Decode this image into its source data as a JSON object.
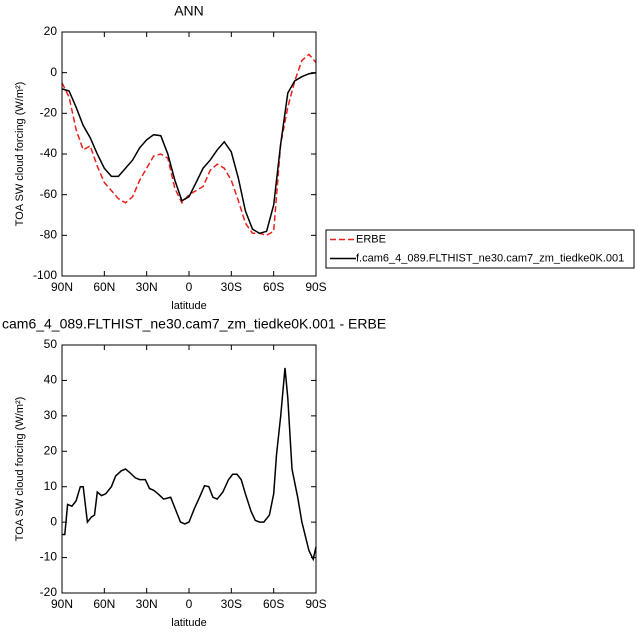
{
  "chart_data": [
    {
      "type": "line",
      "title": "ANN",
      "x_label": "latitude",
      "y_label": "TOA SW cloud forcing (W/m²)",
      "x": [
        90,
        85,
        80,
        75,
        70,
        65,
        60,
        55,
        50,
        45,
        40,
        35,
        30,
        25,
        20,
        15,
        10,
        5,
        0,
        -5,
        -10,
        -15,
        -20,
        -25,
        -30,
        -35,
        -40,
        -45,
        -50,
        -55,
        -60,
        -65,
        -70,
        -75,
        -80,
        -85,
        -90
      ],
      "series": [
        {
          "name": "ERBE",
          "color": "#e8201c",
          "dash": true,
          "values": [
            -5,
            -12,
            -28,
            -38,
            -36,
            -46,
            -54,
            -58,
            -62,
            -64,
            -61,
            -53,
            -47,
            -41,
            -40,
            -42,
            -57,
            -64,
            -60,
            -58,
            -56,
            -48,
            -45,
            -47,
            -53,
            -63,
            -74,
            -79,
            -79,
            -80,
            -78,
            -35,
            -17,
            -4,
            6,
            9,
            5
          ]
        },
        {
          "name": "f.cam6_4_089.FLTHIST_ne30.cam7_zm_tiedke0K.001",
          "color": "#000000",
          "dash": false,
          "values": [
            -8,
            -9,
            -17,
            -26,
            -32,
            -40,
            -47,
            -51,
            -51,
            -47,
            -43,
            -37,
            -33,
            -30.5,
            -31,
            -40,
            -53,
            -63,
            -61,
            -54,
            -47,
            -43,
            -38,
            -34,
            -39,
            -52,
            -68,
            -77,
            -79,
            -78,
            -65,
            -35,
            -10,
            -4,
            -2,
            -0.5,
            0
          ]
        }
      ],
      "xlim": [
        90,
        -90
      ],
      "xticks": [
        {
          "value": 90,
          "label": "90N"
        },
        {
          "value": 60,
          "label": "60N"
        },
        {
          "value": 30,
          "label": "30N"
        },
        0,
        {
          "value": -30,
          "label": "30S"
        },
        {
          "value": -60,
          "label": "60S"
        },
        {
          "value": -90,
          "label": "90S"
        }
      ],
      "ylim": [
        -100,
        20
      ],
      "yticks": [
        -100,
        -80,
        -60,
        -40,
        -20,
        0,
        20
      ],
      "legend": "right"
    },
    {
      "type": "line",
      "title": "cam6_4_089.FLTHIST_ne30.cam7_zm_tiedke0K.001 - ERBE",
      "x_label": "latitude",
      "y_label": "TOA SW cloud forcing (W/m²)",
      "x": [
        90,
        88,
        86,
        83,
        80,
        77,
        75,
        72,
        69,
        67,
        65,
        62,
        59,
        55,
        52,
        48,
        45,
        42,
        38,
        35,
        31,
        28,
        25,
        22,
        18,
        13,
        10,
        6,
        3,
        0,
        -4,
        -8,
        -11,
        -14,
        -17,
        -20,
        -24,
        -28,
        -31,
        -34,
        -37,
        -40,
        -44,
        -47,
        -50,
        -53,
        -57,
        -60,
        -62,
        -65,
        -68,
        -70,
        -73,
        -77,
        -80,
        -85,
        -88,
        -90
      ],
      "series": [
        {
          "color": "#000000",
          "dash": false,
          "values": [
            -3.5,
            -3.5,
            5,
            4.5,
            6,
            10,
            10,
            0,
            1.5,
            2,
            8.5,
            7.5,
            8,
            10,
            13,
            14.5,
            15,
            14,
            12.5,
            12,
            12,
            9.5,
            9,
            8,
            6.5,
            7,
            4,
            0,
            -0.5,
            0,
            4,
            7.5,
            10.3,
            10,
            7,
            6.5,
            8.5,
            12,
            13.5,
            13.5,
            12,
            8,
            3,
            0.5,
            0,
            0,
            2,
            8,
            19,
            30,
            43.5,
            35,
            15,
            7,
            0,
            -8,
            -10.5,
            -7
          ]
        }
      ],
      "xlim": [
        90,
        -90
      ],
      "xticks": [
        {
          "value": 90,
          "label": "90N"
        },
        {
          "value": 60,
          "label": "60N"
        },
        {
          "value": 30,
          "label": "30N"
        },
        0,
        {
          "value": -30,
          "label": "30S"
        },
        {
          "value": -60,
          "label": "60S"
        },
        {
          "value": -90,
          "label": "90S"
        }
      ],
      "ylim": [
        -20,
        50
      ],
      "yticks": [
        -20,
        -10,
        0,
        10,
        20,
        30,
        40,
        50
      ]
    }
  ]
}
